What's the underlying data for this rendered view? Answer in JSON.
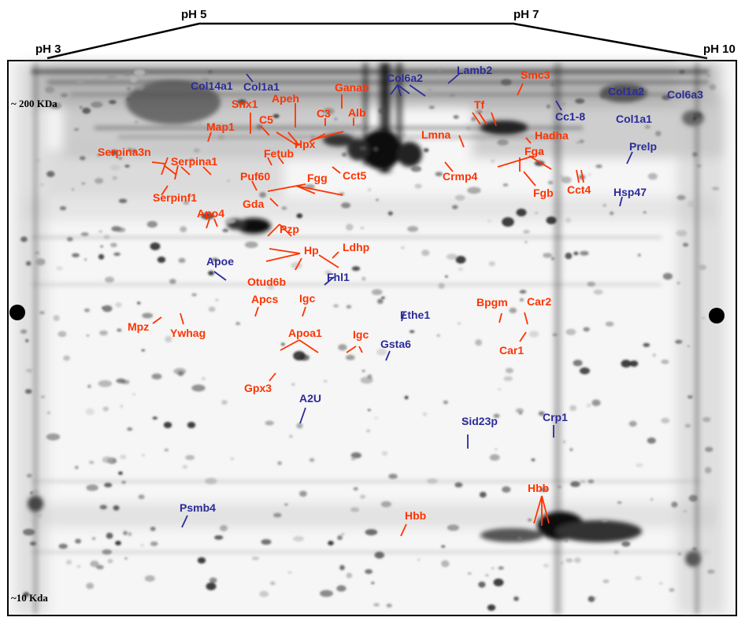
{
  "header": {
    "ph3": "pH 3",
    "ph5": "pH 5",
    "ph7": "pH 7",
    "ph10": "pH 10"
  },
  "markers": {
    "high": "~ 200 KDa",
    "low": "~10 Kda"
  },
  "colors": {
    "red": "#ff3300",
    "blue": "#2b2b99"
  },
  "proteins": [
    {
      "name": "Col14a1",
      "color": "blue"
    },
    {
      "name": "Col1a1",
      "color": "blue"
    },
    {
      "name": "Col6a2",
      "color": "blue"
    },
    {
      "name": "Lamb2",
      "color": "blue"
    },
    {
      "name": "Smc3",
      "color": "red"
    },
    {
      "name": "Col1a2",
      "color": "blue"
    },
    {
      "name": "Col6a3",
      "color": "blue"
    },
    {
      "name": "Ganab",
      "color": "red"
    },
    {
      "name": "Apeh",
      "color": "red"
    },
    {
      "name": "Snx1",
      "color": "red"
    },
    {
      "name": "C3",
      "color": "red"
    },
    {
      "name": "Alb",
      "color": "red"
    },
    {
      "name": "C5",
      "color": "red"
    },
    {
      "name": "Tf",
      "color": "red"
    },
    {
      "name": "Cc1-8",
      "color": "blue"
    },
    {
      "name": "Col1a1",
      "color": "blue"
    },
    {
      "name": "Map1",
      "color": "red"
    },
    {
      "name": "Hpx",
      "color": "red"
    },
    {
      "name": "Lmna",
      "color": "red"
    },
    {
      "name": "Hadha",
      "color": "red"
    },
    {
      "name": "Prelp",
      "color": "blue"
    },
    {
      "name": "Serpina3n",
      "color": "red"
    },
    {
      "name": "Fetub",
      "color": "red"
    },
    {
      "name": "Fga",
      "color": "red"
    },
    {
      "name": "Serpina1",
      "color": "red"
    },
    {
      "name": "Puf60",
      "color": "red"
    },
    {
      "name": "Fgg",
      "color": "red"
    },
    {
      "name": "Cct5",
      "color": "red"
    },
    {
      "name": "Crmp4",
      "color": "red"
    },
    {
      "name": "Cct4",
      "color": "red"
    },
    {
      "name": "Fgb",
      "color": "red"
    },
    {
      "name": "Hsp47",
      "color": "blue"
    },
    {
      "name": "Serpinf1",
      "color": "red"
    },
    {
      "name": "Gda",
      "color": "red"
    },
    {
      "name": "Apo4",
      "color": "red"
    },
    {
      "name": "Pzp",
      "color": "red"
    },
    {
      "name": "Hp",
      "color": "red"
    },
    {
      "name": "Ldhp",
      "color": "red"
    },
    {
      "name": "Apoe",
      "color": "blue"
    },
    {
      "name": "Otud6b",
      "color": "red"
    },
    {
      "name": "Fhl1",
      "color": "blue"
    },
    {
      "name": "Apcs",
      "color": "red"
    },
    {
      "name": "Igc",
      "color": "red"
    },
    {
      "name": "Bpgm",
      "color": "red"
    },
    {
      "name": "Car2",
      "color": "red"
    },
    {
      "name": "Ethe1",
      "color": "blue"
    },
    {
      "name": "Mpz",
      "color": "red"
    },
    {
      "name": "Ywhag",
      "color": "red"
    },
    {
      "name": "Apoa1",
      "color": "red"
    },
    {
      "name": "Igc",
      "color": "red"
    },
    {
      "name": "Gsta6",
      "color": "blue"
    },
    {
      "name": "Car1",
      "color": "red"
    },
    {
      "name": "Gpx3",
      "color": "red"
    },
    {
      "name": "A2U",
      "color": "blue"
    },
    {
      "name": "Sid23p",
      "color": "blue"
    },
    {
      "name": "Crp1",
      "color": "blue"
    },
    {
      "name": "Hbb",
      "color": "red"
    },
    {
      "name": "Psmb4",
      "color": "blue"
    },
    {
      "name": "Hbb",
      "color": "red"
    }
  ]
}
